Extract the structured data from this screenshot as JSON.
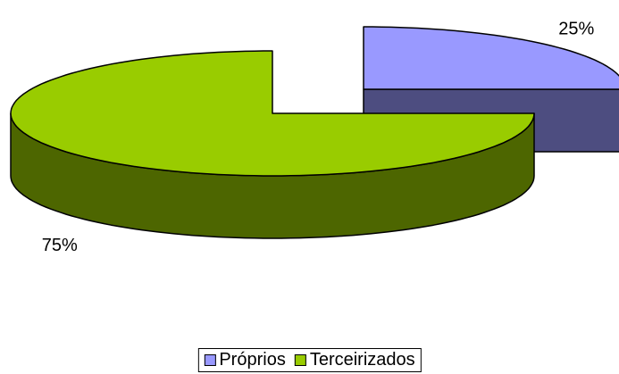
{
  "chart_data": {
    "type": "pie",
    "categories": [
      "Próprios",
      "Terceirizados"
    ],
    "values": [
      25,
      75
    ],
    "value_labels": [
      "25%",
      "75%"
    ],
    "colors": [
      "#9999ff",
      "#99cc00"
    ],
    "legend": "bottom",
    "three_d": true
  }
}
